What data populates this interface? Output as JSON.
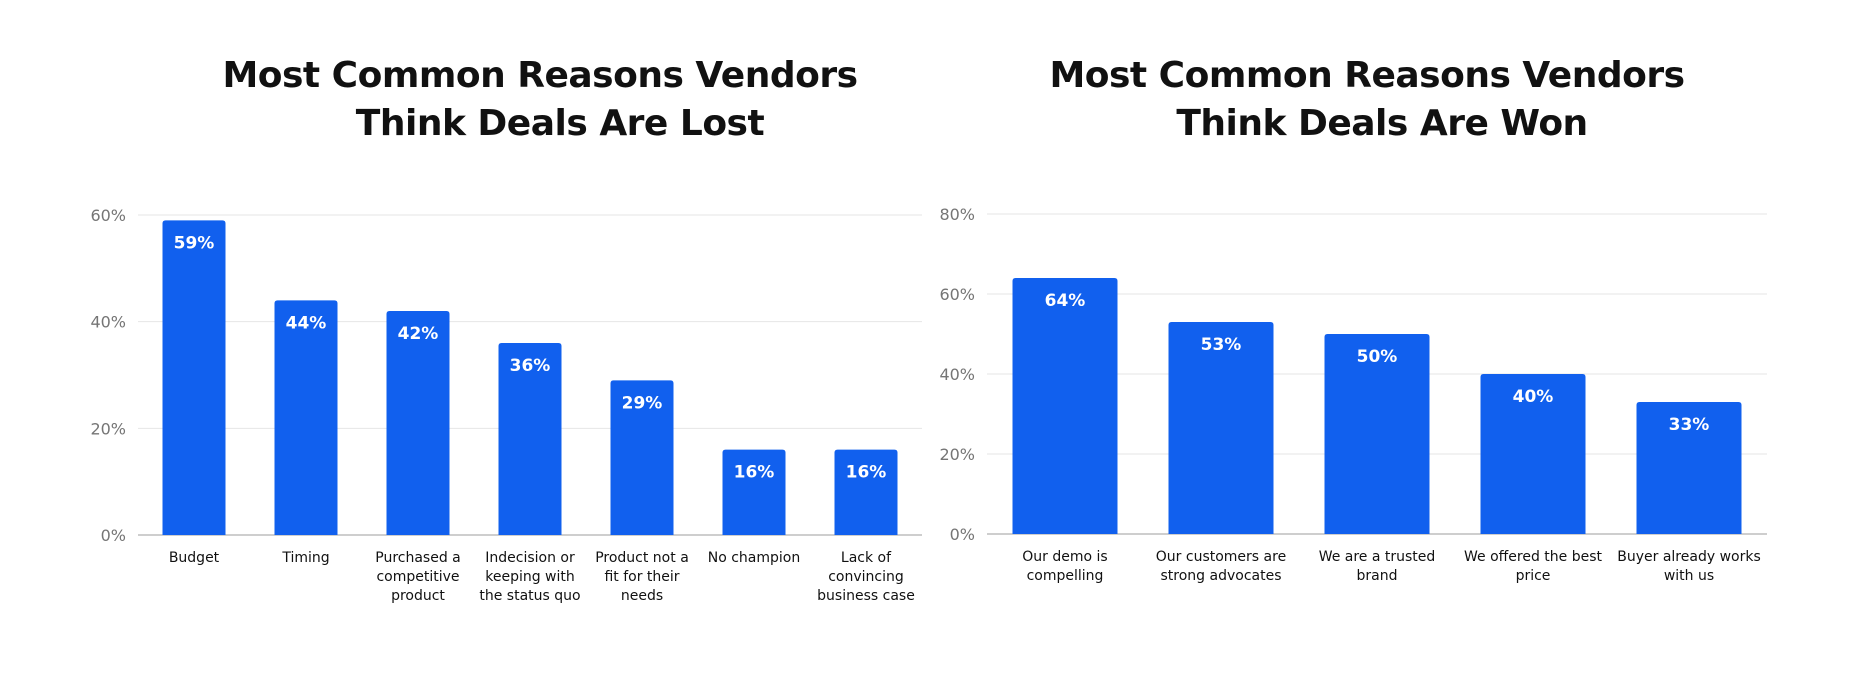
{
  "chart_data": [
    {
      "type": "bar",
      "title": [
        "Most Common Reasons Vendors",
        "Think Deals Are Lost"
      ],
      "categories": [
        [
          "Budget"
        ],
        [
          "Timing"
        ],
        [
          "Purchased a",
          "competitive",
          "product"
        ],
        [
          "Indecision or",
          "keeping with",
          "the status quo"
        ],
        [
          "Product not a",
          "fit for their",
          "needs"
        ],
        [
          "No champion"
        ],
        [
          "Lack of",
          "convincing",
          "business case"
        ]
      ],
      "values": [
        59,
        44,
        42,
        36,
        29,
        16,
        16
      ],
      "data_labels": [
        "59%",
        "44%",
        "42%",
        "36%",
        "29%",
        "16%",
        "16%"
      ],
      "yticks": [
        0,
        20,
        40,
        60
      ],
      "ytick_labels": [
        "0%",
        "20%",
        "40%",
        "60%"
      ],
      "ylim": [
        0,
        60
      ],
      "grid": true,
      "bar_color": "#1160EE"
    },
    {
      "type": "bar",
      "title": [
        "Most Common Reasons Vendors",
        "Think Deals Are Won"
      ],
      "categories": [
        [
          "Our demo is",
          "compelling"
        ],
        [
          "Our customers are",
          "strong advocates"
        ],
        [
          "We are a trusted",
          "brand"
        ],
        [
          "We offered the best",
          "price"
        ],
        [
          "Buyer already works",
          "with us"
        ]
      ],
      "values": [
        64,
        53,
        50,
        40,
        33
      ],
      "data_labels": [
        "64%",
        "53%",
        "50%",
        "40%",
        "33%"
      ],
      "yticks": [
        0,
        20,
        40,
        60,
        80
      ],
      "ytick_labels": [
        "0%",
        "20%",
        "40%",
        "60%",
        "80%"
      ],
      "ylim": [
        0,
        80
      ],
      "grid": true,
      "bar_color": "#1160EE"
    }
  ]
}
